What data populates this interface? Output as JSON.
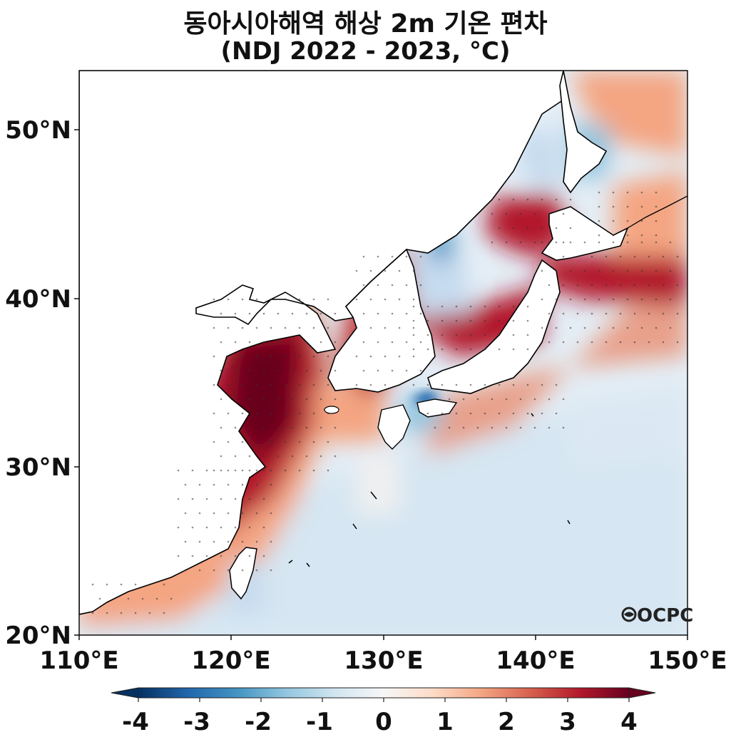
{
  "title": "동아시아해역 해상 2m 기온 편차",
  "subtitle": "(NDJ 2022 - 2023, °C)",
  "watermark": "OCPC",
  "map": {
    "lon_range": [
      110,
      150
    ],
    "lat_range": [
      20,
      53.5
    ],
    "lon_ticks": [
      "110°E",
      "120°E",
      "130°E",
      "140°E",
      "150°E"
    ],
    "lat_ticks": [
      "20°N",
      "30°N",
      "40°N",
      "50°N"
    ],
    "land_color": "#ffffff",
    "coastline_color": "#000000",
    "stippling": "dots mark significant anomalies"
  },
  "colorbar": {
    "colormap": "RdBu_r",
    "range": [
      -4,
      4
    ],
    "extend": "both",
    "tick_labels": [
      "-4",
      "-3",
      "-2",
      "-1",
      "0",
      "1",
      "2",
      "3",
      "4"
    ],
    "colors": [
      "#053061",
      "#2166ac",
      "#4393c3",
      "#92c5de",
      "#d1e5f0",
      "#f7f7f7",
      "#fddbc7",
      "#f4a582",
      "#d6604d",
      "#b2182b",
      "#67001f"
    ]
  }
}
